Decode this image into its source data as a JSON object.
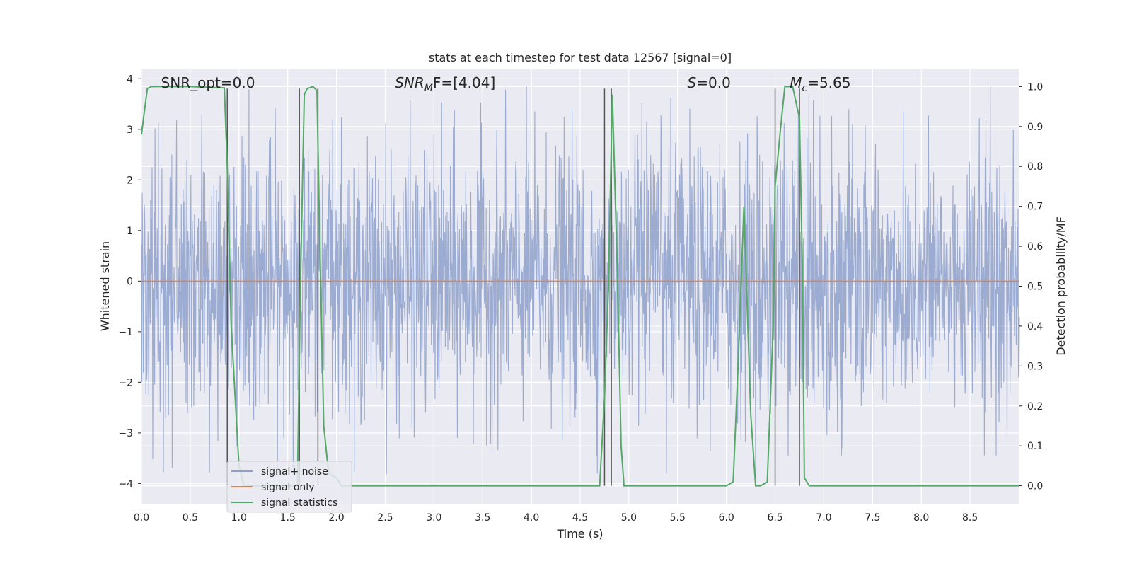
{
  "chart_data": {
    "type": "line",
    "title": "stats at each timestep for test data 12567 [signal=0]",
    "xlabel": "Time (s)",
    "ylabel": "Whitened strain",
    "y2label": "Detection probability/MF",
    "xlim": [
      0.0,
      9.0
    ],
    "ylim": [
      -4.4,
      4.2
    ],
    "y2lim": [
      -0.045,
      1.045
    ],
    "grid": true,
    "legend_position": "lower-left",
    "x_ticks": [
      "0.0",
      "0.5",
      "1.0",
      "1.5",
      "2.0",
      "2.5",
      "3.0",
      "3.5",
      "4.0",
      "4.5",
      "5.0",
      "5.5",
      "6.0",
      "6.5",
      "7.0",
      "7.5",
      "8.0",
      "8.5"
    ],
    "y_ticks": [
      "4",
      "3",
      "2",
      "1",
      "0",
      "−1",
      "−2",
      "−3",
      "−4"
    ],
    "y2_ticks": [
      "1.0",
      "0.9",
      "0.8",
      "0.7",
      "0.6",
      "0.5",
      "0.4",
      "0.3",
      "0.2",
      "0.1",
      "0.0"
    ],
    "annotations": [
      {
        "name": "snr-opt",
        "text": "SNR_opt=0.0",
        "x": 0.2
      },
      {
        "name": "snr-mf",
        "text": "SNR",
        "sub": "M",
        "rest": "F=[4.04]",
        "x": 2.6
      },
      {
        "name": "s-value",
        "text": "S",
        "rest": "=0.0",
        "x": 5.6
      },
      {
        "name": "mc-value",
        "text": "M",
        "sub": "c",
        "rest": "=5.65",
        "x": 6.65
      }
    ],
    "series": [
      {
        "name": "signal+ noise",
        "color": "#8da0cb",
        "kind": "noise",
        "approx_range": [
          -3.9,
          3.9
        ]
      },
      {
        "name": "signal only",
        "color": "#dd8452",
        "kind": "flat",
        "value": 0.0
      },
      {
        "name": "signal statistics",
        "color": "#55a868",
        "axis": "right",
        "x": [
          0.0,
          0.02,
          0.06,
          0.1,
          0.15,
          0.2,
          0.3,
          0.5,
          0.7,
          0.85,
          0.88,
          0.92,
          1.0,
          1.05,
          1.6,
          1.63,
          1.67,
          1.7,
          1.76,
          1.8,
          1.83,
          1.87,
          1.92,
          2.0,
          2.05,
          2.1,
          2.5,
          3.0,
          3.5,
          4.0,
          4.5,
          4.7,
          4.75,
          4.79,
          4.83,
          4.88,
          4.92,
          4.95,
          5.0,
          6.0,
          6.07,
          6.12,
          6.18,
          6.25,
          6.3,
          6.35,
          6.42,
          6.48,
          6.5,
          6.55,
          6.6,
          6.62,
          6.68,
          6.75,
          6.78,
          6.8,
          6.85,
          6.9,
          7.5,
          8.0,
          8.5,
          9.0
        ],
        "values": [
          0.88,
          0.92,
          0.995,
          1.0,
          1.0,
          1.0,
          1.0,
          1.0,
          0.998,
          0.997,
          0.8,
          0.4,
          0.05,
          0.0,
          0.0,
          0.5,
          0.98,
          0.995,
          1.0,
          0.99,
          0.6,
          0.15,
          0.03,
          0.02,
          0.0,
          0.0,
          0.0,
          0.0,
          0.0,
          0.0,
          0.0,
          0.0,
          0.22,
          0.5,
          0.98,
          0.55,
          0.1,
          0.0,
          0.0,
          0.0,
          0.01,
          0.3,
          0.7,
          0.18,
          0.0,
          0.0,
          0.01,
          0.4,
          0.75,
          0.88,
          1.0,
          1.0,
          1.0,
          0.92,
          0.55,
          0.02,
          0.0,
          0.0,
          0.0,
          0.0,
          0.0,
          0.0
        ]
      }
    ],
    "vertical_markers": [
      0.88,
      1.62,
      1.81,
      4.75,
      4.82,
      6.5,
      6.75
    ]
  }
}
